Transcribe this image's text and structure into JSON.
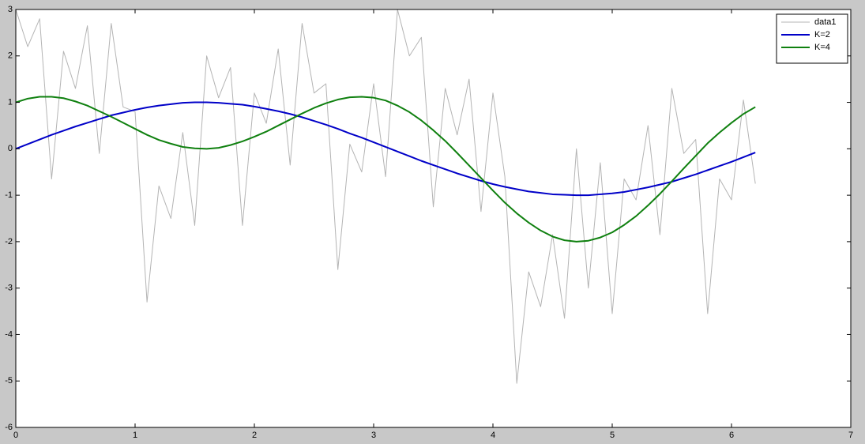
{
  "chart_data": {
    "type": "line",
    "x": [
      0,
      0.1,
      0.2,
      0.3,
      0.4,
      0.5,
      0.6,
      0.7,
      0.8,
      0.9,
      1.0,
      1.1,
      1.2,
      1.3,
      1.4,
      1.5,
      1.6,
      1.7,
      1.8,
      1.9,
      2.0,
      2.1,
      2.2,
      2.3,
      2.4,
      2.5,
      2.6,
      2.7,
      2.8,
      2.9,
      3.0,
      3.1,
      3.2,
      3.3,
      3.4,
      3.5,
      3.6,
      3.7,
      3.8,
      3.9,
      4.0,
      4.1,
      4.2,
      4.3,
      4.4,
      4.5,
      4.6,
      4.7,
      4.8,
      4.9,
      5.0,
      5.1,
      5.2,
      5.3,
      5.4,
      5.5,
      5.6,
      5.7,
      5.8,
      5.9,
      6.0,
      6.1,
      6.2
    ],
    "series": [
      {
        "name": "data1",
        "color": "#b4b4b4",
        "width": 1,
        "values": [
          3.0,
          2.2,
          2.8,
          -0.65,
          2.1,
          1.3,
          2.65,
          -0.1,
          2.7,
          0.9,
          0.8,
          -3.3,
          -0.8,
          -1.5,
          0.35,
          -1.65,
          2.0,
          1.1,
          1.75,
          -1.65,
          1.2,
          0.55,
          2.15,
          -0.35,
          2.7,
          1.2,
          1.4,
          -2.6,
          0.1,
          -0.5,
          1.4,
          -0.6,
          3.0,
          2.0,
          2.4,
          -1.25,
          1.3,
          0.3,
          1.5,
          -1.35,
          1.2,
          -0.6,
          -5.05,
          -2.65,
          -3.4,
          -1.85,
          -3.65,
          0.0,
          -3.0,
          -0.3,
          -3.55,
          -0.65,
          -1.1,
          0.5,
          -1.85,
          1.3,
          -0.1,
          0.2,
          -3.55,
          -0.65,
          -1.1,
          1.05,
          -0.75
        ]
      },
      {
        "name": "K=2",
        "color": "#0000c8",
        "width": 2,
        "values": [
          0,
          0.1,
          0.2,
          0.3,
          0.39,
          0.48,
          0.56,
          0.64,
          0.72,
          0.78,
          0.84,
          0.89,
          0.93,
          0.96,
          0.99,
          1.0,
          1.0,
          0.99,
          0.97,
          0.95,
          0.91,
          0.86,
          0.81,
          0.75,
          0.68,
          0.6,
          0.52,
          0.43,
          0.33,
          0.24,
          0.14,
          0.04,
          -0.06,
          -0.16,
          -0.26,
          -0.35,
          -0.44,
          -0.53,
          -0.61,
          -0.69,
          -0.76,
          -0.82,
          -0.87,
          -0.92,
          -0.95,
          -0.98,
          -0.99,
          -1.0,
          -1.0,
          -0.98,
          -0.96,
          -0.93,
          -0.88,
          -0.83,
          -0.77,
          -0.71,
          -0.63,
          -0.55,
          -0.46,
          -0.37,
          -0.28,
          -0.18,
          -0.08
        ]
      },
      {
        "name": "K=4",
        "color": "#0f800f",
        "width": 2,
        "values": [
          1,
          1.08,
          1.12,
          1.12,
          1.09,
          1.02,
          0.93,
          0.81,
          0.69,
          0.56,
          0.43,
          0.3,
          0.19,
          0.11,
          0.04,
          0.01,
          0.0,
          0.02,
          0.08,
          0.16,
          0.26,
          0.37,
          0.5,
          0.63,
          0.76,
          0.88,
          0.98,
          1.06,
          1.11,
          1.12,
          1.1,
          1.04,
          0.93,
          0.79,
          0.61,
          0.4,
          0.17,
          -0.09,
          -0.36,
          -0.63,
          -0.9,
          -1.16,
          -1.39,
          -1.59,
          -1.76,
          -1.89,
          -1.97,
          -2.0,
          -1.98,
          -1.91,
          -1.8,
          -1.64,
          -1.45,
          -1.22,
          -0.97,
          -0.7,
          -0.42,
          -0.15,
          0.12,
          0.35,
          0.56,
          0.75,
          0.9
        ]
      }
    ],
    "xlim": [
      0,
      7
    ],
    "ylim": [
      -6,
      3
    ],
    "xticks": [
      0,
      1,
      2,
      3,
      4,
      5,
      6,
      7
    ],
    "yticks": [
      -6,
      -5,
      -4,
      -3,
      -2,
      -1,
      0,
      1,
      2,
      3
    ],
    "legend": "northeast",
    "grid": false
  }
}
